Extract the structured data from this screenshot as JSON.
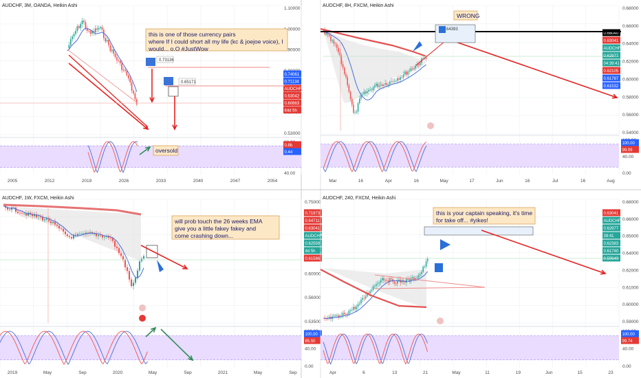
{
  "colors": {
    "bg": "#ffffff",
    "grid": "#eef0f4",
    "up": "#26a69a",
    "down": "#ef5350",
    "ema": "#e45050",
    "sma": "#4a6bd6",
    "purple": "#a58cf0",
    "purpleFill": "#e9dcff",
    "red": "#e62020",
    "note_bg": "#fde8c6",
    "note_border": "#d9a35a",
    "price_red": "#e53935",
    "price_blue": "#2962ff",
    "price_green": "#26a69a",
    "divider": "#c8cbd2"
  },
  "charts": [
    {
      "title": "AUDCHF, 3M, OANDA, Heikin Ashi",
      "xticks": [
        "2005",
        "2012",
        "2019",
        "2026",
        "2033",
        "2040",
        "2047",
        "2054"
      ],
      "yticks": [
        "1.10000",
        "1.00000",
        "0.90000",
        "0.80000",
        "0.70000",
        "0.60000",
        "0.53000"
      ],
      "osc_ticks": [
        "80.00",
        "40.00"
      ],
      "price_tags": [
        {
          "text": "0.74061",
          "color": "#2962ff"
        },
        {
          "text": "0.71134",
          "color": "#2962ff"
        },
        {
          "text": "AUDCHF",
          "color": "#e53935"
        },
        {
          "text": "0.63042",
          "color": "#e53935"
        },
        {
          "text": "0.60863",
          "color": "#e53935"
        },
        {
          "text": "64d 5h",
          "color": "#e53935"
        }
      ],
      "osc_tags": [
        {
          "text": "0.8b",
          "color": "#e53935"
        },
        {
          "text": "0.44",
          "color": "#2962ff"
        }
      ],
      "note": "this is one of those currency pairs\nwhere If I could short all my life (kc & joejoe voice), I\nwould... o.O #JustWow",
      "note2": "oversold",
      "box_labels": [
        "0.73136",
        "0.65171"
      ]
    },
    {
      "title": "AUDCHF, 8H, FXCM, Heikin Ashi",
      "xticks": [
        "Mar",
        "16",
        "Apr",
        "16",
        "May",
        "17",
        "Jun",
        "16",
        "Jul",
        "16",
        "Aug"
      ],
      "yticks": [
        "0.68000",
        "0.66000",
        "0.64000",
        "0.62000",
        "0.60000",
        "0.58000",
        "0.56000",
        "0.54000"
      ],
      "osc_ticks": [
        "100.00",
        "40.00",
        "0.00"
      ],
      "price_tags": [
        {
          "text": "0.66040",
          "color": "#000000"
        },
        {
          "text": "0.63041",
          "color": "#e53935"
        },
        {
          "text": "AUDCHF",
          "color": "#26a69a"
        },
        {
          "text": "0.62977",
          "color": "#26a69a"
        },
        {
          "text": "04:39:41",
          "color": "#26a69a"
        },
        {
          "text": "0.62105",
          "color": "#e53935"
        },
        {
          "text": "0.61787",
          "color": "#2962ff"
        },
        {
          "text": "0.61532",
          "color": "#2962ff"
        }
      ],
      "osc_tags": [
        {
          "text": "100.00",
          "color": "#2962ff"
        },
        {
          "text": "99.09",
          "color": "#e53935"
        }
      ],
      "note": "WRONG",
      "box_labels": [
        "0.64393"
      ]
    },
    {
      "title": "AUDCHF, 1W, FXCM, Heikin Ashi",
      "xticks": [
        "2019",
        "May",
        "Sep",
        "2020",
        "May",
        "Sep",
        "2021",
        "May",
        "Sep"
      ],
      "yticks": [
        "0.75000",
        "0.70000",
        "0.65000",
        "0.60000",
        "0.56000",
        "0.53500"
      ],
      "osc_ticks": [
        "100.00",
        "40.00",
        "0.00"
      ],
      "price_tags": [
        {
          "text": "0.71973",
          "color": "#e53935"
        },
        {
          "text": "0.64711",
          "color": "#e53935"
        },
        {
          "text": "0.63041",
          "color": "#e53935"
        },
        {
          "text": "AUDCHF",
          "color": "#26a69a"
        },
        {
          "text": "0.62559",
          "color": "#26a69a"
        },
        {
          "text": "4d 5h",
          "color": "#26a69a"
        },
        {
          "text": "0.61586",
          "color": "#e53935"
        }
      ],
      "osc_tags": [
        {
          "text": "100.00",
          "color": "#2962ff"
        },
        {
          "text": "85.50",
          "color": "#e53935"
        }
      ],
      "note": "will prob touch the 26 weeks EMA\ngive you a little fakey fakey and\ncome crashing down...",
      "box_labels": []
    },
    {
      "title": "AUDCHF, 240, FXCM, Heikin Ashi",
      "xticks": [
        "Apr",
        "6",
        "13",
        "21",
        "May",
        "11",
        "19",
        "Jun",
        "15",
        "23"
      ],
      "yticks": [
        "0.68000",
        "0.66000",
        "0.65000",
        "0.64000",
        "0.62000",
        "0.61000",
        "0.60000",
        "0.59000"
      ],
      "osc_ticks": [
        "100.00",
        "40.00",
        "0.00"
      ],
      "price_tags": [
        {
          "text": "0.63041",
          "color": "#e53935"
        },
        {
          "text": "AUDCHF",
          "color": "#26a69a"
        },
        {
          "text": "0.62977",
          "color": "#26a69a"
        },
        {
          "text": "39:41",
          "color": "#26a69a"
        },
        {
          "text": "0.62383",
          "color": "#26a69a"
        },
        {
          "text": "0.61740",
          "color": "#26a69a"
        },
        {
          "text": "0.59649",
          "color": "#26a69a"
        }
      ],
      "osc_tags": [
        {
          "text": "100.00",
          "color": "#2962ff"
        },
        {
          "text": "99.74",
          "color": "#e53935"
        }
      ],
      "note": "this is your captain speaking, it's time\nfor take off... #yikes!",
      "box_labels": []
    }
  ]
}
